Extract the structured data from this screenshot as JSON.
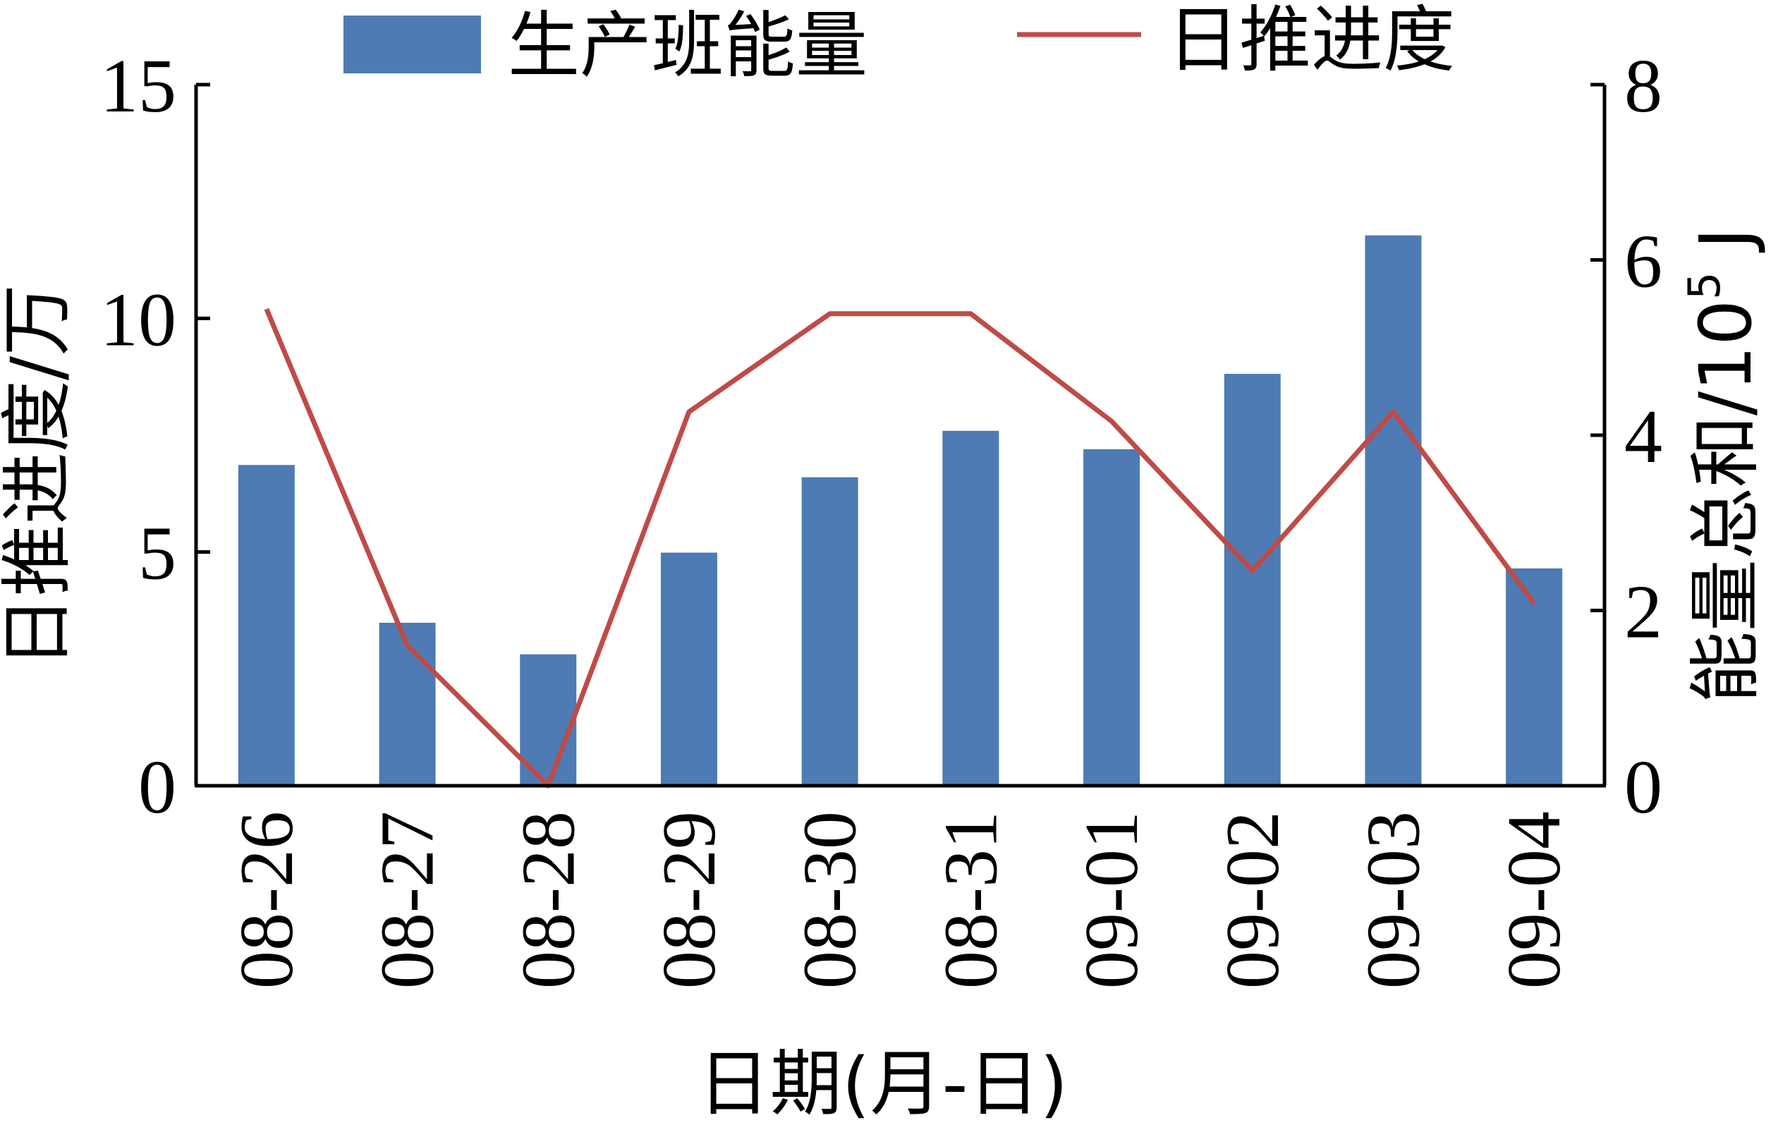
{
  "chart_data": {
    "type": "bar",
    "categories": [
      "08-26",
      "08-27",
      "08-28",
      "08-29",
      "08-30",
      "08-31",
      "09-01",
      "09-02",
      "09-03",
      "09-04"
    ],
    "xlabel": "日期(月-日)",
    "series": [
      {
        "name": "生产班能量",
        "type": "bar",
        "axis": "right",
        "color": "#4e7bb3",
        "values": [
          3.66,
          1.86,
          1.5,
          2.66,
          3.52,
          4.05,
          3.84,
          4.7,
          6.28,
          2.48
        ]
      },
      {
        "name": "日推进度",
        "type": "line",
        "axis": "left",
        "color": "#bf4b47",
        "values": [
          10.2,
          3.0,
          0.0,
          8.0,
          10.1,
          10.1,
          7.8,
          4.6,
          8.0,
          3.9
        ]
      }
    ],
    "y_left": {
      "label": "日推进度/万",
      "ylim": [
        0,
        15
      ],
      "ticks": [
        "0",
        "5",
        "10",
        "15"
      ]
    },
    "y_right": {
      "label_main": "能量总和/10",
      "label_sup": "5",
      "label_unit": " J",
      "ylim": [
        0,
        8
      ],
      "ticks": [
        "0",
        "2",
        "4",
        "6",
        "8"
      ]
    },
    "legend_position": "top"
  }
}
